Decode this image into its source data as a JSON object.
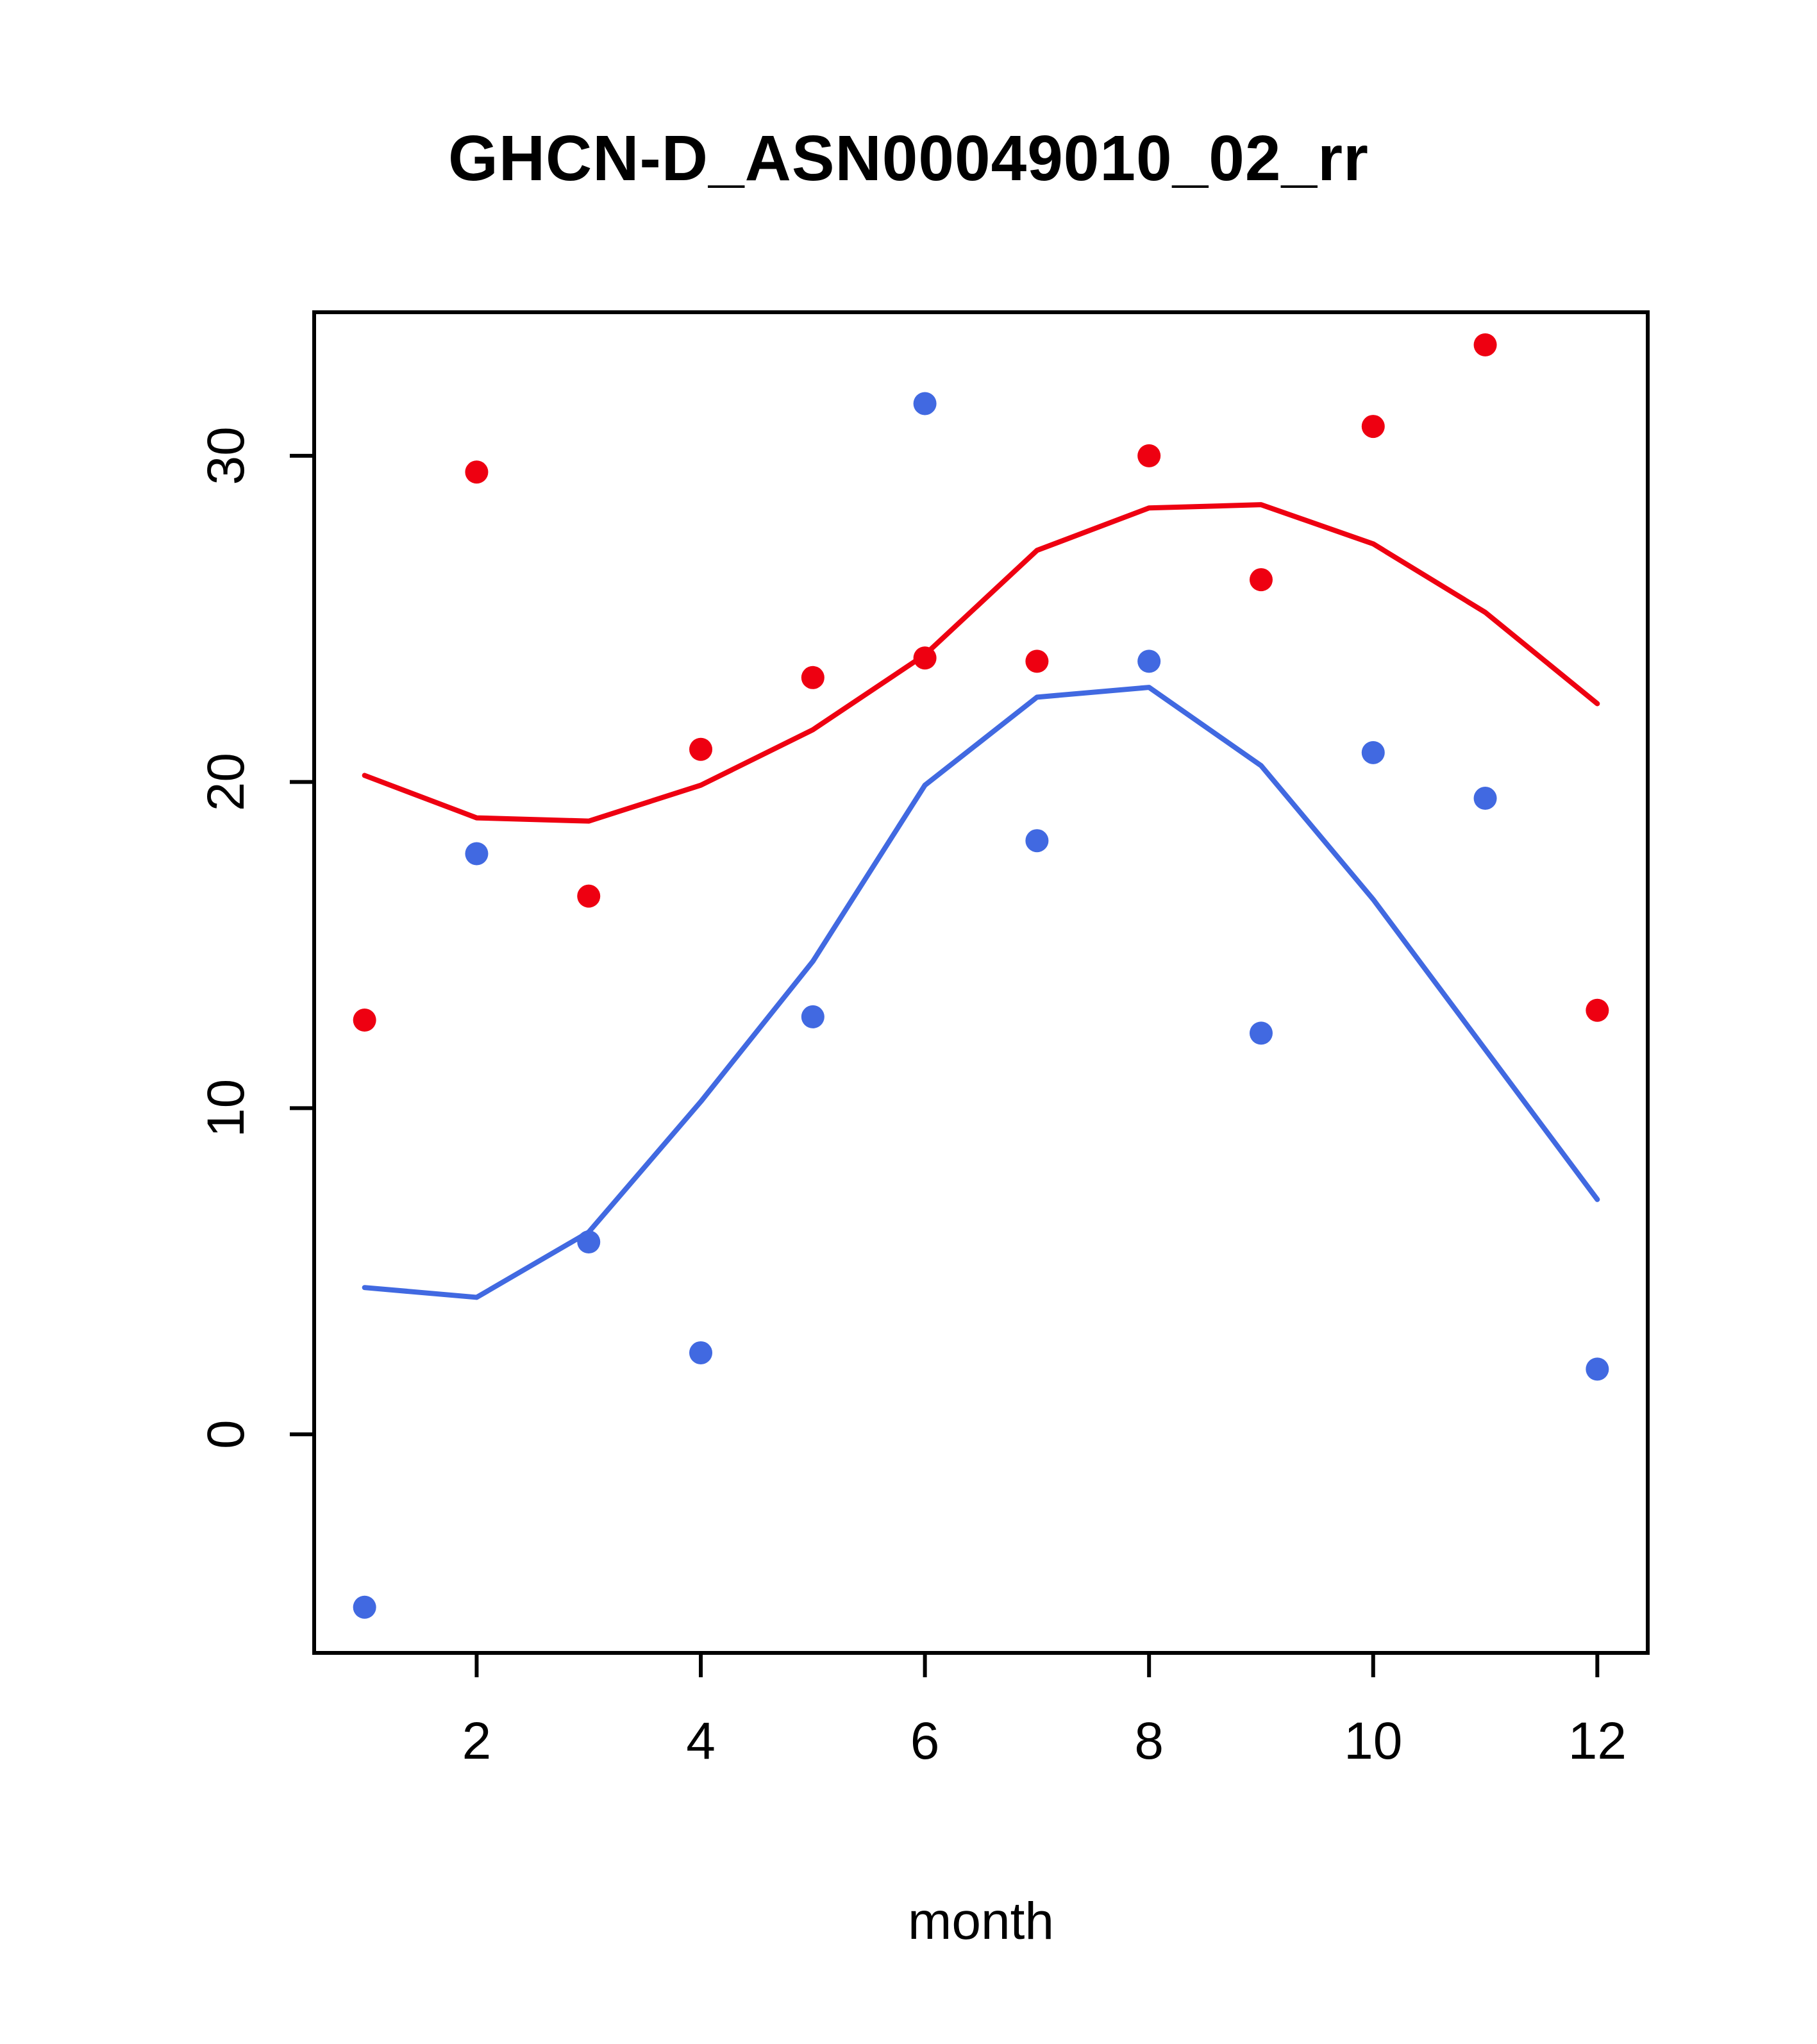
{
  "title": "GHCN-D_ASN00049010_02_rr",
  "xlabel": "month",
  "chart_data": {
    "type": "scatter",
    "title": "GHCN-D_ASN00049010_02_rr",
    "xlabel": "month",
    "ylabel": "",
    "xlim": [
      0.55,
      12.45
    ],
    "ylim": [
      -6.7,
      34.4
    ],
    "x_ticks": [
      2,
      4,
      6,
      8,
      10,
      12
    ],
    "y_ticks": [
      0,
      10,
      20,
      30
    ],
    "grid": false,
    "legend": "none",
    "months": [
      1,
      2,
      3,
      4,
      5,
      6,
      7,
      8,
      9,
      10,
      11,
      12
    ],
    "colors": {
      "red": "#EE0011",
      "blue": "#4169E1",
      "axis": "#000000"
    },
    "series": [
      {
        "name": "red-points",
        "type": "points",
        "color": "#EE0011",
        "values": [
          12.7,
          29.5,
          16.5,
          21.0,
          23.2,
          23.8,
          23.7,
          30.0,
          26.2,
          30.9,
          33.4,
          13.0
        ]
      },
      {
        "name": "blue-points",
        "type": "points",
        "color": "#4169E1",
        "values": [
          -5.3,
          17.8,
          5.9,
          2.5,
          12.8,
          31.6,
          18.2,
          23.7,
          12.3,
          20.9,
          19.5,
          2.0
        ]
      },
      {
        "name": "red-trend-line",
        "type": "line",
        "color": "#EE0011",
        "values": [
          20.2,
          18.9,
          18.8,
          19.9,
          21.6,
          23.9,
          27.1,
          28.4,
          28.5,
          27.3,
          25.2,
          22.4
        ]
      },
      {
        "name": "blue-trend-line",
        "type": "line",
        "color": "#4169E1",
        "values": [
          4.5,
          4.2,
          6.2,
          10.2,
          14.5,
          19.9,
          22.6,
          22.9,
          20.5,
          16.4,
          11.8,
          7.2
        ]
      }
    ]
  }
}
